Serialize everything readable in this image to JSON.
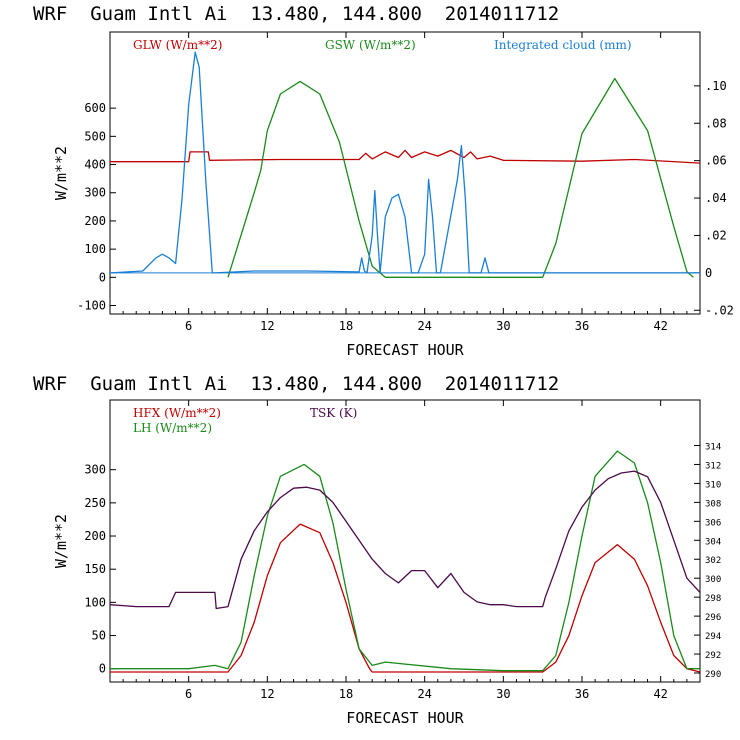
{
  "chart_data": [
    {
      "type": "line",
      "title": "WRF  Guam Intl Ai  13.480, 144.800  2014011712",
      "xlabel": "FORECAST HOUR",
      "ylabel": "W/m**2",
      "xlim": [
        0,
        45
      ],
      "ylim": [
        -130,
        870
      ],
      "xticks": [
        "6",
        "12",
        "18",
        "24",
        "30",
        "36",
        "42"
      ],
      "yticks": [
        "-100",
        "0",
        "100",
        "200",
        "300",
        "400",
        "500",
        "600"
      ],
      "y2lim": [
        -0.022,
        0.1288
      ],
      "y2ticks": [
        "-.02",
        "0",
        ".02",
        ".04",
        ".06",
        ".08",
        ".10"
      ],
      "series": [
        {
          "name": "GLW (W/m**2)",
          "axis": "left",
          "color": "#c00000",
          "x": [
            0,
            6,
            6.1,
            7.5,
            7.6,
            13,
            19,
            19.5,
            20,
            21,
            22,
            22.5,
            23,
            24,
            25,
            26,
            27,
            27.5,
            28,
            29,
            30,
            36,
            40,
            45
          ],
          "y": [
            410,
            410,
            445,
            445,
            415,
            418,
            418,
            440,
            420,
            445,
            425,
            450,
            425,
            445,
            430,
            450,
            425,
            445,
            420,
            430,
            415,
            412,
            418,
            405
          ]
        },
        {
          "name": "GSW (W/m**2)",
          "axis": "left",
          "color": "#1a8a1a",
          "x": [
            9,
            10,
            11,
            11.5,
            12,
            13,
            14.5,
            16,
            17.5,
            19,
            20,
            21,
            33,
            34,
            36,
            38.5,
            41,
            43,
            44,
            44.5
          ],
          "y": [
            0,
            150,
            300,
            380,
            520,
            650,
            695,
            650,
            480,
            200,
            40,
            0,
            0,
            120,
            510,
            705,
            520,
            180,
            20,
            0
          ]
        },
        {
          "name": "Integrated cloud (mm)",
          "axis": "right",
          "color": "#1a7fd4",
          "x": [
            0,
            2.5,
            3.5,
            4,
            4.5,
            5,
            5.5,
            6,
            6.5,
            6.8,
            7.3,
            7.8,
            8,
            11,
            15,
            19,
            19.2,
            19.4,
            19.6,
            20,
            20.2,
            20.4,
            20.6,
            21,
            21.5,
            22,
            22.5,
            23,
            23.5,
            24,
            24.3,
            24.6,
            24.9,
            25.2,
            26.5,
            26.8,
            27.1,
            27.4,
            27.7,
            28.3,
            28.6,
            28.9,
            45
          ],
          "y": [
            0,
            0.001,
            0.008,
            0.01,
            0.008,
            0.005,
            0.04,
            0.09,
            0.118,
            0.11,
            0.05,
            0,
            0,
            0.001,
            0.001,
            0.0005,
            0.008,
            0.001,
            0,
            0.02,
            0.044,
            0.02,
            0,
            0.03,
            0.04,
            0.042,
            0.03,
            0,
            0,
            0.01,
            0.05,
            0.03,
            0,
            0,
            0.05,
            0.068,
            0.04,
            0,
            0,
            0,
            0.008,
            0,
            0
          ]
        }
      ]
    },
    {
      "type": "line",
      "title": "WRF  Guam Intl Ai  13.480, 144.800  2014011712",
      "xlabel": "FORECAST HOUR",
      "ylabel": "W/m**2",
      "xlim": [
        0,
        45
      ],
      "ylim": [
        -20,
        405
      ],
      "xticks": [
        "6",
        "12",
        "18",
        "24",
        "30",
        "36",
        "42"
      ],
      "yticks": [
        "0",
        "50",
        "100",
        "150",
        "200",
        "250",
        "300"
      ],
      "y2lim": [
        289.05,
        318.8
      ],
      "y2ticks": [
        "290",
        "292",
        "294",
        "296",
        "298",
        "300",
        "302",
        "304",
        "306",
        "308",
        "310",
        "312",
        "314"
      ],
      "series": [
        {
          "name": "HFX (W/m**2)",
          "axis": "left",
          "color": "#c00000",
          "x": [
            0,
            8,
            9,
            10,
            11,
            12,
            13,
            14.5,
            16,
            17,
            18,
            19,
            19.8,
            20,
            24,
            30,
            33,
            34,
            35,
            36,
            37,
            38.7,
            40,
            41,
            42,
            43,
            44,
            45
          ],
          "y": [
            -5,
            -5,
            -5,
            20,
            70,
            140,
            190,
            218,
            205,
            160,
            100,
            30,
            0,
            -5,
            -5,
            -5,
            -5,
            10,
            50,
            110,
            160,
            187,
            165,
            125,
            70,
            20,
            0,
            -5
          ]
        },
        {
          "name": "LH (W/m**2)",
          "axis": "left",
          "color": "#1a8a1a",
          "x": [
            0,
            6,
            8,
            9,
            10,
            11,
            12,
            13,
            14.8,
            16,
            17,
            18,
            19,
            20,
            21,
            26,
            30,
            33,
            34,
            35,
            36,
            37,
            38.7,
            40,
            41,
            42,
            43,
            44,
            45
          ],
          "y": [
            0,
            0,
            5,
            0,
            40,
            140,
            230,
            290,
            308,
            290,
            220,
            120,
            30,
            5,
            10,
            0,
            -3,
            -3,
            20,
            100,
            200,
            290,
            328,
            310,
            250,
            160,
            50,
            0,
            0
          ]
        },
        {
          "name": "TSK (K)",
          "axis": "right",
          "color": "#4b0a4b",
          "x": [
            0,
            2,
            4.5,
            5,
            8,
            8.1,
            9,
            10,
            11,
            12,
            13,
            14,
            15,
            16,
            17,
            18,
            19,
            20,
            21,
            22,
            23,
            24,
            25,
            26,
            27,
            28,
            29,
            30,
            31,
            32,
            33,
            33.2,
            34,
            35,
            36,
            37,
            38,
            39,
            40,
            41,
            42,
            43,
            44,
            45
          ],
          "y": [
            297.2,
            297.0,
            297.0,
            298.5,
            298.5,
            296.8,
            297.0,
            302.0,
            305.0,
            307.0,
            308.5,
            309.5,
            309.6,
            309.3,
            308.0,
            306.0,
            304.0,
            302.0,
            300.5,
            299.5,
            300.8,
            300.8,
            299.0,
            300.5,
            298.5,
            297.5,
            297.2,
            297.2,
            297.0,
            297.0,
            297.0,
            298.0,
            301.0,
            305.0,
            307.5,
            309.3,
            310.5,
            311.1,
            311.3,
            310.7,
            308.0,
            304.0,
            300.0,
            298.5
          ]
        }
      ]
    }
  ]
}
